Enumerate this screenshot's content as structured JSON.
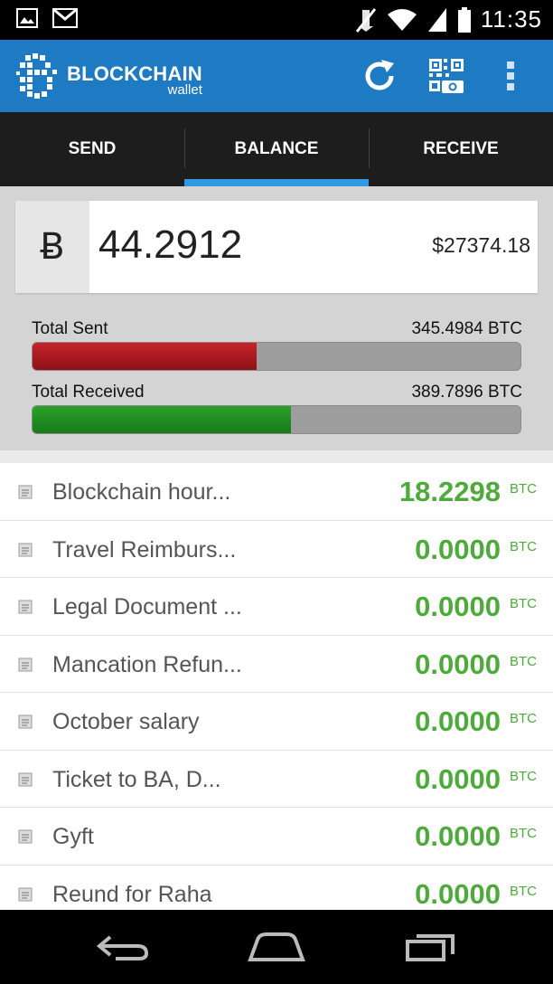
{
  "status_bar": {
    "time": "11:35",
    "icons": [
      "image-icon",
      "gmail-icon",
      "mute-icon",
      "wifi-icon",
      "signal-icon",
      "battery-icon"
    ]
  },
  "app_bar": {
    "brand_title": "BLOCKCHAIN",
    "brand_subtitle": "wallet",
    "accent_color": "#1e7ac3",
    "actions": [
      "refresh-icon",
      "qr-scan-icon",
      "overflow-menu-icon"
    ]
  },
  "tabs": [
    {
      "label": "SEND",
      "active": false
    },
    {
      "label": "BALANCE",
      "active": true
    },
    {
      "label": "RECEIVE",
      "active": false
    }
  ],
  "balance": {
    "currency_symbol": "Ƀ",
    "btc": "44.2912",
    "usd": "$27374.18"
  },
  "stats": {
    "sent_label": "Total Sent",
    "sent_value": "345.4984 BTC",
    "sent_fraction": 0.46,
    "received_label": "Total Received",
    "received_value": "389.7896 BTC",
    "received_fraction": 0.53
  },
  "transactions": [
    {
      "label": "Blockchain hour...",
      "amount": "18.2298",
      "unit": "BTC"
    },
    {
      "label": "Travel Reimburs...",
      "amount": "0.0000",
      "unit": "BTC"
    },
    {
      "label": "Legal Document ...",
      "amount": "0.0000",
      "unit": "BTC"
    },
    {
      "label": "Mancation Refun...",
      "amount": "0.0000",
      "unit": "BTC"
    },
    {
      "label": "October salary",
      "amount": "0.0000",
      "unit": "BTC"
    },
    {
      "label": "Ticket to BA, D...",
      "amount": "0.0000",
      "unit": "BTC"
    },
    {
      "label": "Gyft",
      "amount": "0.0000",
      "unit": "BTC"
    },
    {
      "label": "Reund for Raha",
      "amount": "0.0000",
      "unit": "BTC"
    }
  ],
  "nav_bar": [
    "back-icon",
    "home-icon",
    "recents-icon"
  ]
}
